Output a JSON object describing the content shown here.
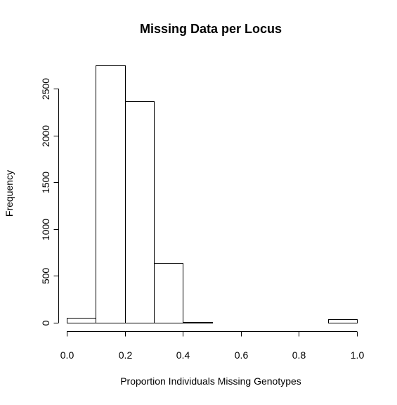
{
  "chart_data": {
    "type": "bar",
    "subtype": "histogram",
    "title": "Missing Data per Locus",
    "xlabel": "Proportion Individuals Missing Genotypes",
    "ylabel": "Frequency",
    "bin_edges": [
      0.0,
      0.1,
      0.2,
      0.3,
      0.4,
      0.5,
      0.6,
      0.7,
      0.8,
      0.9,
      1.0
    ],
    "values": [
      50,
      2750,
      2365,
      640,
      5,
      0,
      0,
      0,
      0,
      35
    ],
    "xlim": [
      0.0,
      1.0
    ],
    "ylim": [
      0,
      2750
    ],
    "x_ticks": [
      0.0,
      0.2,
      0.4,
      0.6,
      0.8,
      1.0
    ],
    "x_tick_labels": [
      "0.0",
      "0.2",
      "0.4",
      "0.6",
      "0.8",
      "1.0"
    ],
    "y_ticks": [
      0,
      500,
      1000,
      1500,
      2000,
      2500
    ],
    "y_tick_labels": [
      "0",
      "500",
      "1000",
      "1500",
      "2000",
      "2500"
    ],
    "grid": false,
    "legend": "none",
    "bar_fill": "#ffffff",
    "bar_stroke": "#000000"
  }
}
